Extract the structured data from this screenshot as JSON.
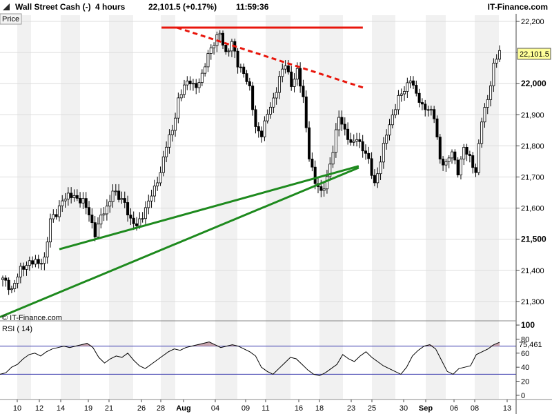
{
  "header": {
    "instrument": "Wall Street Cash (-)",
    "timeframe": "4 hours",
    "price_change": "22,101.5 (+0.17%)",
    "time": "11:59:36",
    "brand": "IT-Finance.com"
  },
  "price_panel": {
    "label": "Price",
    "watermark": "© IT-Finance.com",
    "current_price_label": "22,101.5"
  },
  "rsi_panel": {
    "label": "RSI ( 14)",
    "current_value_label": "75,461"
  },
  "colors": {
    "resistance": "#e8160c",
    "support": "#1e8a1e",
    "candle_up": "#ffffff",
    "candle_down": "#000000",
    "rsi_line": "#000000",
    "rsi_level": "#3333aa",
    "rsi_fill": "#c9a5ad",
    "price_box": "#ffff99"
  },
  "chart_data": [
    {
      "type": "candlestick",
      "title": "Wall Street Cash (-)",
      "timeframe": "4 hours",
      "x_tick_labels": [
        "10",
        "12",
        "14",
        "19",
        "21",
        "26",
        "28",
        "Aug",
        "04",
        "09",
        "11",
        "16",
        "18",
        "23",
        "25",
        "30",
        "Sep",
        "06",
        "08",
        "13"
      ],
      "y_ticks": [
        21300,
        21400,
        21500,
        21600,
        21700,
        21800,
        21900,
        22000,
        22100,
        22200
      ],
      "y_tick_labels": [
        "21,300",
        "21,400",
        "21,500",
        "21,600",
        "21,700",
        "21,800",
        "21,900",
        "22,000",
        "22,100",
        "22,200"
      ],
      "ylim": [
        21240,
        22220
      ],
      "current_price": 22101.5,
      "close_path": [
        [
          0,
          21370
        ],
        [
          3,
          21340
        ],
        [
          6,
          21400
        ],
        [
          9,
          21430
        ],
        [
          12,
          21420
        ],
        [
          14,
          21440
        ],
        [
          16,
          21560
        ],
        [
          18,
          21580
        ],
        [
          20,
          21630
        ],
        [
          24,
          21640
        ],
        [
          27,
          21620
        ],
        [
          29,
          21580
        ],
        [
          31,
          21520
        ],
        [
          33,
          21570
        ],
        [
          35,
          21600
        ],
        [
          37,
          21660
        ],
        [
          39,
          21630
        ],
        [
          41,
          21620
        ],
        [
          43,
          21560
        ],
        [
          45,
          21540
        ],
        [
          47,
          21580
        ],
        [
          49,
          21620
        ],
        [
          51,
          21660
        ],
        [
          53,
          21720
        ],
        [
          55,
          21800
        ],
        [
          57,
          21850
        ],
        [
          59,
          21950
        ],
        [
          61,
          21990
        ],
        [
          63,
          22010
        ],
        [
          65,
          21990
        ],
        [
          67,
          22020
        ],
        [
          69,
          22100
        ],
        [
          71,
          22130
        ],
        [
          73,
          22160
        ],
        [
          75,
          22100
        ],
        [
          77,
          22130
        ],
        [
          79,
          22060
        ],
        [
          81,
          22040
        ],
        [
          83,
          21980
        ],
        [
          85,
          21860
        ],
        [
          87,
          21840
        ],
        [
          89,
          21900
        ],
        [
          91,
          21950
        ],
        [
          93,
          22020
        ],
        [
          95,
          22060
        ],
        [
          97,
          22000
        ],
        [
          99,
          22040
        ],
        [
          101,
          21950
        ],
        [
          103,
          21770
        ],
        [
          105,
          21680
        ],
        [
          107,
          21650
        ],
        [
          109,
          21700
        ],
        [
          111,
          21780
        ],
        [
          113,
          21900
        ],
        [
          115,
          21850
        ],
        [
          117,
          21800
        ],
        [
          119,
          21830
        ],
        [
          121,
          21790
        ],
        [
          123,
          21750
        ],
        [
          125,
          21680
        ],
        [
          127,
          21750
        ],
        [
          129,
          21840
        ],
        [
          131,
          21900
        ],
        [
          133,
          21950
        ],
        [
          135,
          21980
        ],
        [
          137,
          22020
        ],
        [
          139,
          21960
        ],
        [
          141,
          21930
        ],
        [
          143,
          21920
        ],
        [
          145,
          21890
        ],
        [
          147,
          21760
        ],
        [
          149,
          21740
        ],
        [
          151,
          21780
        ],
        [
          153,
          21720
        ],
        [
          155,
          21790
        ],
        [
          157,
          21760
        ],
        [
          159,
          21720
        ],
        [
          161,
          21880
        ],
        [
          163,
          21950
        ],
        [
          165,
          22060
        ],
        [
          167,
          22101.5
        ]
      ],
      "series": [
        {
          "name": "Resistance (horizontal)",
          "points": [
            [
              0.313,
              22180
            ],
            [
              0.703,
              22180
            ]
          ]
        },
        {
          "name": "Resistance (descending trendline)",
          "points": [
            [
              0.343,
              22180
            ],
            [
              0.708,
              21985
            ]
          ]
        },
        {
          "name": "Support trendline 1",
          "points": [
            [
              0.115,
              21468
            ],
            [
              0.695,
              21735
            ]
          ]
        },
        {
          "name": "Support trendline 2",
          "points": [
            [
              0.0,
              21250
            ],
            [
              0.695,
              21730
            ]
          ]
        }
      ]
    },
    {
      "type": "line",
      "title": "RSI ( 14)",
      "y_ticks": [
        0,
        20,
        40,
        60,
        80,
        100
      ],
      "y_tick_labels": [
        "0",
        "20",
        "40",
        "60",
        "80",
        "100"
      ],
      "ylim": [
        -5,
        105
      ],
      "levels": [
        30,
        70
      ],
      "current_value": 75.461,
      "values": [
        30,
        32,
        40,
        44,
        52,
        58,
        60,
        56,
        62,
        66,
        68,
        70,
        68,
        70,
        72,
        74,
        68,
        54,
        46,
        52,
        56,
        54,
        60,
        50,
        42,
        38,
        44,
        50,
        56,
        62,
        66,
        64,
        68,
        70,
        72,
        74,
        76,
        72,
        68,
        70,
        72,
        70,
        66,
        62,
        56,
        40,
        34,
        30,
        38,
        46,
        54,
        52,
        44,
        36,
        30,
        28,
        32,
        38,
        44,
        58,
        52,
        48,
        56,
        62,
        54,
        48,
        42,
        38,
        34,
        30,
        40,
        56,
        64,
        70,
        72,
        66,
        50,
        34,
        30,
        38,
        40,
        42,
        58,
        62,
        66,
        72,
        75.461
      ]
    }
  ]
}
